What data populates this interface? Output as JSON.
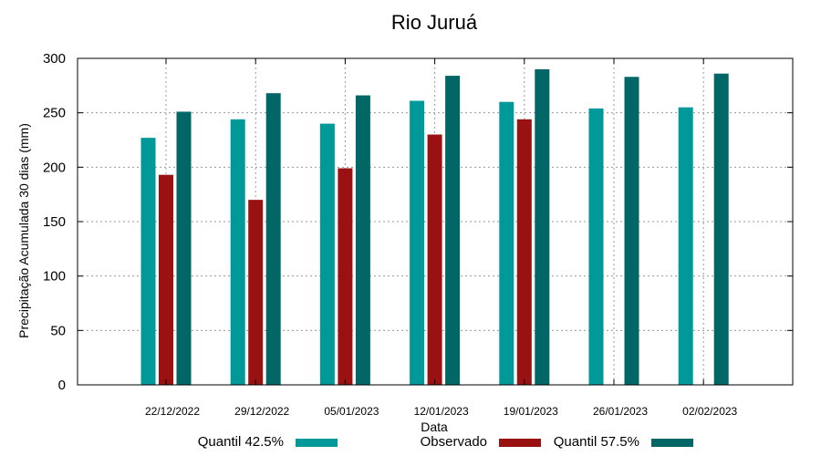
{
  "chart_data": {
    "type": "bar",
    "title": "Rio Juruá",
    "xlabel": "Data",
    "ylabel": "Precipitação Acumulada 30 dias (mm)",
    "ylim": [
      0,
      300
    ],
    "yticks": [
      0,
      50,
      100,
      150,
      200,
      250,
      300
    ],
    "grid": true,
    "legend_position": "bottom",
    "categories": [
      "22/12/2022",
      "29/12/2022",
      "05/01/2023",
      "12/01/2023",
      "19/01/2023",
      "26/01/2023",
      "02/02/2023"
    ],
    "series": [
      {
        "name": "Quantil 42.5%",
        "color": "#009999",
        "values": [
          227,
          244,
          240,
          261,
          260,
          254,
          255
        ]
      },
      {
        "name": "Observado",
        "color": "#991111",
        "values": [
          193,
          170,
          199,
          230,
          244,
          null,
          null
        ]
      },
      {
        "name": "Quantil 57.5%",
        "color": "#006666",
        "values": [
          251,
          268,
          266,
          284,
          290,
          283,
          286
        ]
      }
    ]
  }
}
